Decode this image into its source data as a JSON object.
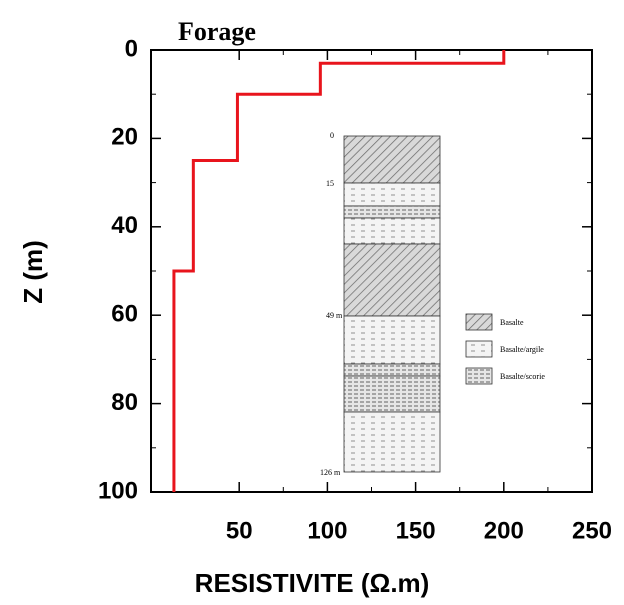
{
  "chart_data": {
    "type": "line",
    "title": "Forage",
    "x_label": "RESISTIVITE (Ω.m)",
    "y_label": "Z (m)",
    "xlim": [
      0,
      250
    ],
    "ylim": [
      0,
      100
    ],
    "y_inverted": true,
    "xticks": [
      50,
      100,
      150,
      200,
      250
    ],
    "yticks": [
      0,
      20,
      40,
      60,
      80,
      100
    ],
    "series": [
      {
        "color": "#e8141c",
        "x": [
          200,
          200,
          96,
          96,
          49,
          49,
          24,
          24,
          13,
          13
        ],
        "values": [
          0,
          3,
          3,
          10,
          10,
          25,
          25,
          50,
          50,
          100
        ]
      }
    ]
  },
  "inset": {
    "depth_labels": [
      "0",
      "15",
      "49 m",
      "126 m"
    ],
    "legend": [
      "Basalte",
      "Basalte/argile",
      "Basalte/scorie"
    ]
  }
}
